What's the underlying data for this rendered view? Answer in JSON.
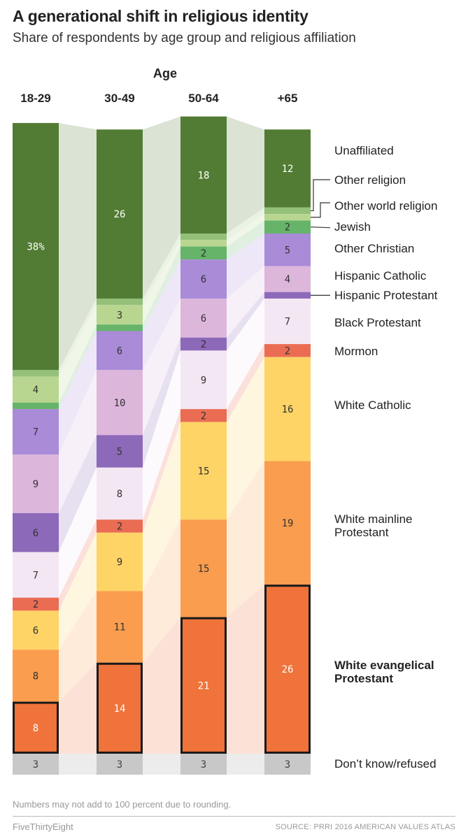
{
  "chart_data": {
    "type": "stacked_bar",
    "title": "A generational shift in religious identity",
    "subtitle": "Share of respondents by age group and religious affiliation",
    "xlabel": "Age",
    "categories": [
      "18-29",
      "30-49",
      "50-64",
      "+65"
    ],
    "series": [
      {
        "name": "Unaffiliated",
        "label": "Unaffiliated",
        "color": "#527c33",
        "values": [
          38,
          26,
          18,
          12
        ],
        "texts": [
          "38%",
          "26",
          "18",
          "12"
        ]
      },
      {
        "name": "Other religion",
        "label": "Other religion",
        "color": "#94c07a",
        "values": [
          1,
          1,
          1,
          1
        ],
        "texts": [
          "",
          "",
          "",
          ""
        ]
      },
      {
        "name": "Other world religion",
        "label": "Other world religion",
        "color": "#b8d68f",
        "values": [
          4,
          3,
          1,
          1
        ],
        "texts": [
          "4",
          "3",
          "",
          ""
        ]
      },
      {
        "name": "Jewish",
        "label": "Jewish",
        "color": "#66b46a",
        "values": [
          1,
          1,
          2,
          2
        ],
        "texts": [
          "",
          "",
          "2",
          "2"
        ]
      },
      {
        "name": "Other Christian",
        "label": "Other Christian",
        "color": "#a98bd8",
        "values": [
          7,
          6,
          6,
          5
        ],
        "texts": [
          "7",
          "6",
          "6",
          "5"
        ]
      },
      {
        "name": "Hispanic Catholic",
        "label": "Hispanic Catholic",
        "color": "#ddb6dc",
        "values": [
          9,
          10,
          6,
          4
        ],
        "texts": [
          "9",
          "10",
          "6",
          "4"
        ]
      },
      {
        "name": "Hispanic Protestant",
        "label": "Hispanic Protestant",
        "color": "#8d69b9",
        "values": [
          6,
          5,
          2,
          1
        ],
        "texts": [
          "6",
          "5",
          "2",
          ""
        ]
      },
      {
        "name": "Black Protestant",
        "label": "Black Protestant",
        "color": "#f4e7f4",
        "values": [
          7,
          8,
          9,
          7
        ],
        "texts": [
          "7",
          "8",
          "9",
          "7"
        ]
      },
      {
        "name": "Mormon",
        "label": "Mormon",
        "color": "#ea6d53",
        "values": [
          2,
          2,
          2,
          2
        ],
        "texts": [
          "2",
          "2",
          "2",
          "2"
        ]
      },
      {
        "name": "White Catholic",
        "label": "White Catholic",
        "color": "#fed466",
        "values": [
          6,
          9,
          15,
          16
        ],
        "texts": [
          "6",
          "9",
          "15",
          "16"
        ]
      },
      {
        "name": "White mainline Protestant",
        "label": "White mainline Protestant",
        "color": "#fa9d4e",
        "values": [
          8,
          11,
          15,
          19
        ],
        "texts": [
          "8",
          "11",
          "15",
          "19"
        ]
      },
      {
        "name": "White evangelical Protestant",
        "label": "White evangelical Protestant",
        "color": "#ef733a",
        "values": [
          8,
          14,
          21,
          26
        ],
        "texts": [
          "8",
          "14",
          "21",
          "26"
        ],
        "highlight": true
      },
      {
        "name": "Don't know/refused",
        "label": "Don’t know/refused",
        "color": "#c8c8c8",
        "values": [
          3,
          3,
          3,
          3
        ],
        "texts": [
          "3",
          "3",
          "3",
          "3"
        ]
      }
    ],
    "footnote": "Numbers may not add to 100 percent due to rounding.",
    "brand": "FiveThirtyEight",
    "source": "SOURCE: PRRI 2016 AMERICAN VALUES ATLAS"
  }
}
